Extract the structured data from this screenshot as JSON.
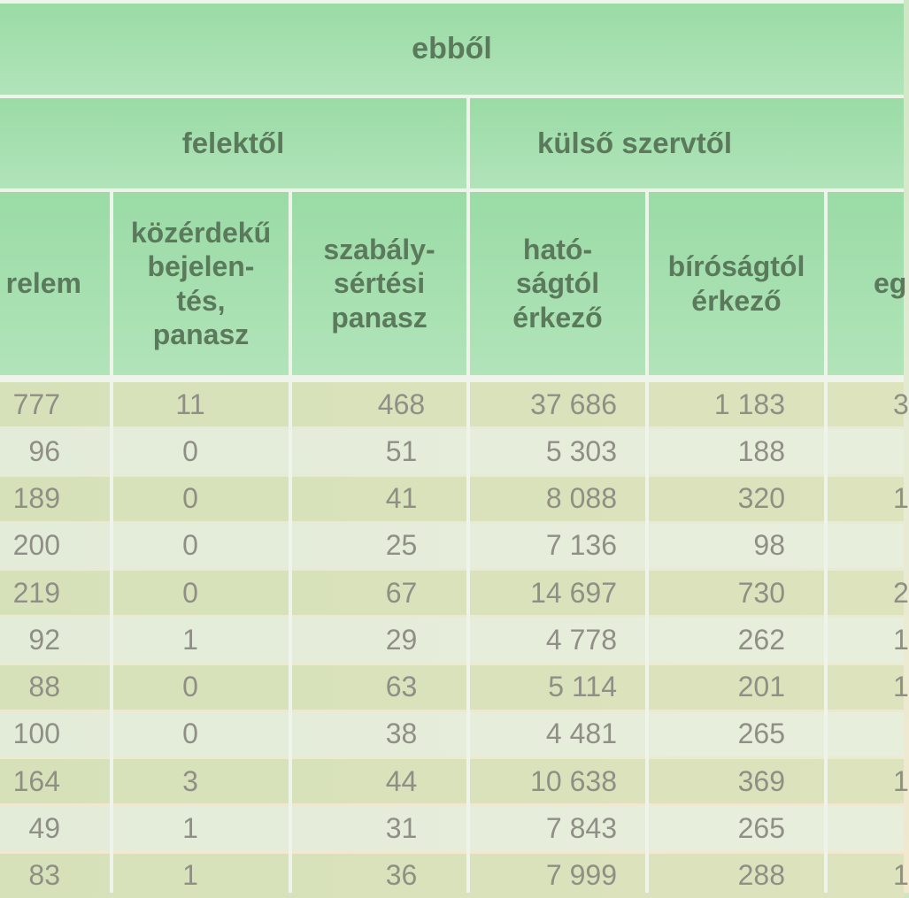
{
  "header": {
    "ebbol": "ebből",
    "felektol": "felektől",
    "kulso_szervtol": "külső szervtől",
    "col_kerelem": "relem",
    "col_kozerdeku": "közérdekű bejelen-tés, panasz",
    "col_szabalysertesi": "szabály-sértési panasz",
    "col_hatosagtol": "ható-ságtól érkező",
    "col_birosagtol": "bíróságtól érkező",
    "col_egyeb": "eg"
  },
  "rows": [
    {
      "kerelem": "777",
      "kozerdeku": "11",
      "szabalysertesi": "468",
      "hatosagtol": "37 686",
      "birosagtol": "1 183",
      "egyeb": "3"
    },
    {
      "kerelem": "96",
      "kozerdeku": "0",
      "szabalysertesi": "51",
      "hatosagtol": "5 303",
      "birosagtol": "188",
      "egyeb": ""
    },
    {
      "kerelem": "189",
      "kozerdeku": "0",
      "szabalysertesi": "41",
      "hatosagtol": "8 088",
      "birosagtol": "320",
      "egyeb": "1"
    },
    {
      "kerelem": "200",
      "kozerdeku": "0",
      "szabalysertesi": "25",
      "hatosagtol": "7 136",
      "birosagtol": "98",
      "egyeb": ""
    },
    {
      "kerelem": "219",
      "kozerdeku": "0",
      "szabalysertesi": "67",
      "hatosagtol": "14 697",
      "birosagtol": "730",
      "egyeb": "2"
    },
    {
      "kerelem": "92",
      "kozerdeku": "1",
      "szabalysertesi": "29",
      "hatosagtol": "4 778",
      "birosagtol": "262",
      "egyeb": "1"
    },
    {
      "kerelem": "88",
      "kozerdeku": "0",
      "szabalysertesi": "63",
      "hatosagtol": "5 114",
      "birosagtol": "201",
      "egyeb": "1"
    },
    {
      "kerelem": "100",
      "kozerdeku": "0",
      "szabalysertesi": "38",
      "hatosagtol": "4 481",
      "birosagtol": "265",
      "egyeb": ""
    },
    {
      "kerelem": "164",
      "kozerdeku": "3",
      "szabalysertesi": "44",
      "hatosagtol": "10 638",
      "birosagtol": "369",
      "egyeb": "1"
    },
    {
      "kerelem": "49",
      "kozerdeku": "1",
      "szabalysertesi": "31",
      "hatosagtol": "7 843",
      "birosagtol": "265",
      "egyeb": ""
    },
    {
      "kerelem": "83",
      "kozerdeku": "1",
      "szabalysertesi": "36",
      "hatosagtol": "7 999",
      "birosagtol": "288",
      "egyeb": "1"
    }
  ]
}
